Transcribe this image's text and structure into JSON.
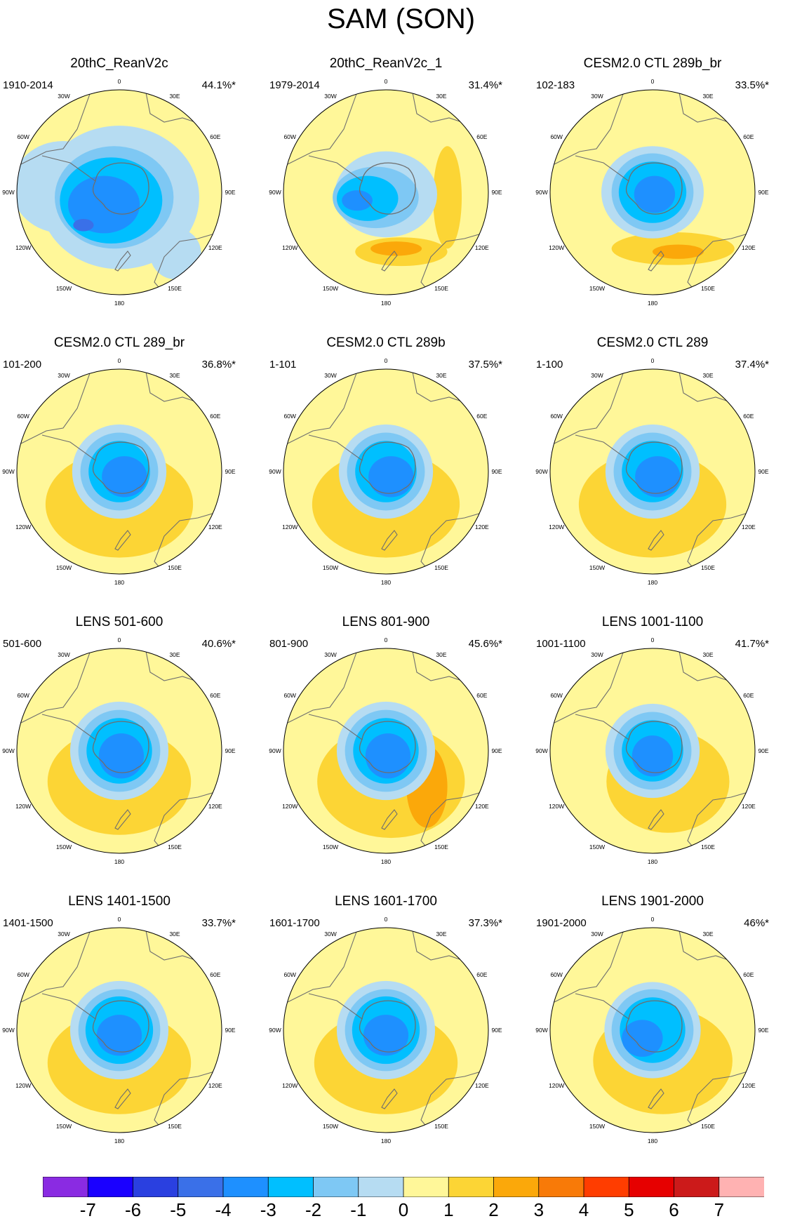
{
  "title": "SAM (SON)",
  "palette": [
    "#8a2be2",
    "#1a00ff",
    "#2a40e0",
    "#3a70e8",
    "#1e90ff",
    "#00bfff",
    "#7ec8f4",
    "#b6dcf2",
    "#fff799",
    "#fcd535",
    "#fba80a",
    "#f87a08",
    "#ff3d00",
    "#e60000",
    "#cc1a1a",
    "#ffb2b2"
  ],
  "levels": [
    -7,
    -6,
    -5,
    -4,
    -3,
    -2,
    -1,
    0,
    1,
    2,
    3,
    4,
    5,
    6,
    7
  ],
  "colorbar_labels": [
    "-7",
    "-6",
    "-5",
    "-4",
    "-3",
    "-2",
    "-1",
    "0",
    "1",
    "2",
    "3",
    "4",
    "5",
    "6",
    "7"
  ],
  "lon_labels": [
    "0",
    "30E",
    "60E",
    "90E",
    "120E",
    "150E",
    "180",
    "150W",
    "120W",
    "90W",
    "60W",
    "30W"
  ],
  "panels": [
    {
      "title": "20thC_ReanV2c",
      "period": "1910-2014",
      "variance": "44.1%*"
    },
    {
      "title": "20thC_ReanV2c_1",
      "period": "1979-2014",
      "variance": "31.4%*"
    },
    {
      "title": "CESM2.0 CTL 289b_br",
      "period": "102-183",
      "variance": "33.5%*"
    },
    {
      "title": "CESM2.0 CTL 289_br",
      "period": "101-200",
      "variance": "36.8%*"
    },
    {
      "title": "CESM2.0 CTL 289b",
      "period": "1-101",
      "variance": "37.5%*"
    },
    {
      "title": "CESM2.0 CTL 289",
      "period": "1-100",
      "variance": "37.4%*"
    },
    {
      "title": "LENS 501-600",
      "period": "501-600",
      "variance": "40.6%*"
    },
    {
      "title": "LENS 801-900",
      "period": "801-900",
      "variance": "45.6%*"
    },
    {
      "title": "LENS 1001-1100",
      "period": "1001-1100",
      "variance": "41.7%*"
    },
    {
      "title": "LENS 1401-1500",
      "period": "1401-1500",
      "variance": "33.7%*"
    },
    {
      "title": "LENS 1601-1700",
      "period": "1601-1700",
      "variance": "37.3%*"
    },
    {
      "title": "LENS 1901-2000",
      "period": "1901-2000",
      "variance": "46%*"
    }
  ]
}
